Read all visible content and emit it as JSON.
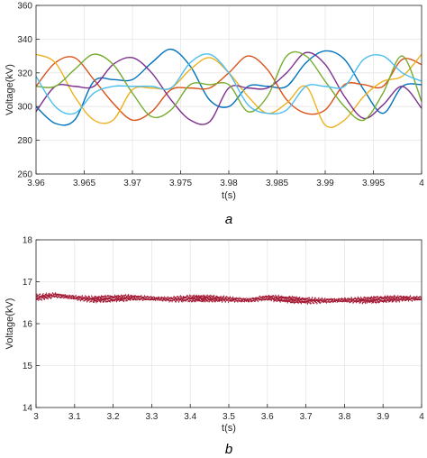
{
  "chart_data": [
    {
      "type": "line",
      "caption": "a",
      "xlabel": "t(s)",
      "ylabel": "Voltage(kV)",
      "xlim": [
        3.96,
        4.0
      ],
      "ylim": [
        260,
        360
      ],
      "xticks": [
        3.96,
        3.965,
        3.97,
        3.975,
        3.98,
        3.985,
        3.99,
        3.995,
        4
      ],
      "xtick_labels": [
        "3.96",
        "3.965",
        "3.97",
        "3.975",
        "3.98",
        "3.985",
        "3.99",
        "3.995",
        "4"
      ],
      "yticks": [
        260,
        280,
        300,
        320,
        340,
        360
      ],
      "ytick_labels": [
        "260",
        "280",
        "300",
        "320",
        "340",
        "360"
      ],
      "grid": true,
      "series": [
        {
          "color": "#0072BD",
          "x": [
            3.96,
            3.962,
            3.964,
            3.966,
            3.968,
            3.97,
            3.972,
            3.974,
            3.976,
            3.978,
            3.98,
            3.982,
            3.984,
            3.986,
            3.988,
            3.99,
            3.992,
            3.994,
            3.996,
            3.998,
            4.0
          ],
          "y": [
            300,
            290,
            292,
            315,
            316,
            316,
            326,
            334,
            324,
            304,
            300,
            312,
            312,
            312,
            326,
            333,
            328,
            310,
            296,
            312,
            313
          ]
        },
        {
          "color": "#D95319",
          "x": [
            3.96,
            3.962,
            3.964,
            3.966,
            3.968,
            3.97,
            3.972,
            3.974,
            3.976,
            3.978,
            3.98,
            3.982,
            3.984,
            3.986,
            3.988,
            3.99,
            3.992,
            3.994,
            3.996,
            3.998,
            4.0
          ],
          "y": [
            312,
            326,
            329,
            316,
            302,
            292,
            297,
            310,
            311,
            311,
            320,
            330,
            322,
            304,
            296,
            298,
            313,
            313,
            312,
            328,
            325
          ]
        },
        {
          "color": "#EDB120",
          "x": [
            3.96,
            3.962,
            3.964,
            3.966,
            3.968,
            3.97,
            3.972,
            3.974,
            3.976,
            3.978,
            3.98,
            3.982,
            3.984,
            3.986,
            3.988,
            3.99,
            3.992,
            3.994,
            3.996,
            3.998,
            4.0
          ],
          "y": [
            331,
            326,
            306,
            292,
            292,
            310,
            311,
            311,
            322,
            329,
            320,
            306,
            296,
            302,
            312,
            289,
            292,
            306,
            315,
            318,
            331
          ]
        },
        {
          "color": "#7E2F8E",
          "x": [
            3.96,
            3.962,
            3.964,
            3.966,
            3.968,
            3.97,
            3.972,
            3.974,
            3.976,
            3.978,
            3.98,
            3.982,
            3.984,
            3.986,
            3.988,
            3.99,
            3.992,
            3.994,
            3.996,
            3.998,
            4.0
          ],
          "y": [
            297,
            312,
            312,
            312,
            325,
            329,
            320,
            304,
            292,
            291,
            311,
            311,
            311,
            320,
            332,
            325,
            306,
            293,
            301,
            312,
            299
          ]
        },
        {
          "color": "#77AC30",
          "x": [
            3.96,
            3.962,
            3.964,
            3.966,
            3.968,
            3.97,
            3.972,
            3.974,
            3.976,
            3.978,
            3.98,
            3.982,
            3.984,
            3.986,
            3.988,
            3.99,
            3.992,
            3.994,
            3.996,
            3.998,
            4.0
          ],
          "y": [
            312,
            312,
            322,
            331,
            325,
            308,
            294,
            298,
            313,
            313,
            313,
            297,
            306,
            330,
            330,
            315,
            300,
            292,
            308,
            330,
            303
          ]
        },
        {
          "color": "#4DBEEE",
          "x": [
            3.96,
            3.962,
            3.964,
            3.966,
            3.968,
            3.97,
            3.972,
            3.974,
            3.976,
            3.978,
            3.98,
            3.982,
            3.984,
            3.986,
            3.988,
            3.99,
            3.992,
            3.994,
            3.996,
            3.998,
            4.0
          ],
          "y": [
            318,
            300,
            296,
            308,
            312,
            312,
            312,
            311,
            326,
            331,
            320,
            301,
            296,
            298,
            312,
            312,
            312,
            328,
            330,
            320,
            315
          ]
        }
      ]
    },
    {
      "type": "line",
      "caption": "b",
      "xlabel": "t(s)",
      "ylabel": "Voltage(kV)",
      "xlim": [
        3.0,
        4.0
      ],
      "ylim": [
        14,
        18
      ],
      "xticks": [
        3,
        3.1,
        3.2,
        3.3,
        3.4,
        3.5,
        3.6,
        3.7,
        3.8,
        3.9,
        4
      ],
      "xtick_labels": [
        "3",
        "3.1",
        "3.2",
        "3.3",
        "3.4",
        "3.5",
        "3.6",
        "3.7",
        "3.8",
        "3.9",
        "4"
      ],
      "yticks": [
        14,
        15,
        16,
        17,
        18
      ],
      "ytick_labels": [
        "14",
        "15",
        "16",
        "17",
        "18"
      ],
      "grid": true,
      "series": [
        {
          "color": "#A2142F",
          "x": [
            3.0,
            3.05,
            3.1,
            3.15,
            3.2,
            3.25,
            3.3,
            3.35,
            3.4,
            3.45,
            3.5,
            3.55,
            3.6,
            3.65,
            3.7,
            3.75,
            3.8,
            3.85,
            3.9,
            3.95,
            4.0
          ],
          "y_center": [
            16.62,
            16.68,
            16.62,
            16.58,
            16.6,
            16.62,
            16.6,
            16.58,
            16.6,
            16.6,
            16.58,
            16.56,
            16.62,
            16.58,
            16.55,
            16.55,
            16.56,
            16.56,
            16.58,
            16.6,
            16.6
          ],
          "band": 0.14
        }
      ]
    }
  ]
}
